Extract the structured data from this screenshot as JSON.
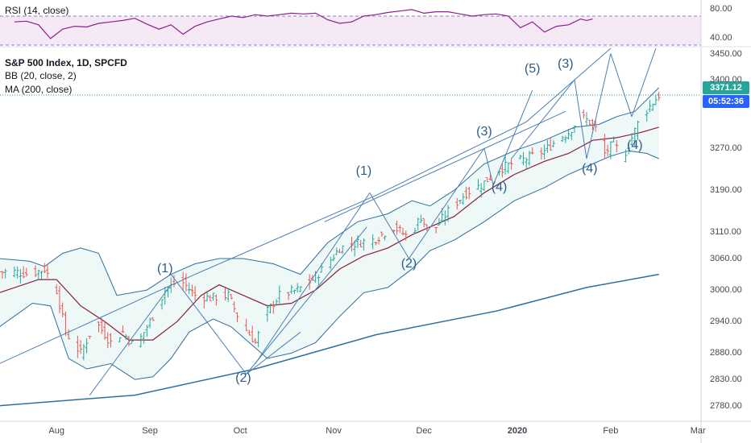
{
  "chart_data": [
    {
      "type": "line",
      "indicator": "RSI (14, close)",
      "legend_text": "RSI (14, close)",
      "y_ticks": [
        "80.00",
        "40.00"
      ],
      "y_tick_values": [
        80,
        40
      ],
      "ylim": [
        30,
        90
      ],
      "band": [
        30,
        70
      ],
      "x_days": [
        0,
        4,
        8,
        12,
        16,
        20,
        24,
        28,
        32,
        36,
        40,
        44,
        48,
        52,
        56,
        60,
        64,
        68,
        72,
        76,
        80,
        84,
        88,
        92,
        96,
        100,
        104,
        108,
        112,
        116,
        120,
        124,
        128,
        132,
        136,
        140,
        144,
        148,
        152,
        156,
        160,
        164,
        168,
        172,
        176,
        180,
        184,
        188,
        190,
        192
      ],
      "values": [
        62,
        63,
        58,
        39,
        52,
        56,
        55,
        60,
        62,
        64,
        67,
        59,
        52,
        58,
        45,
        56,
        62,
        66,
        70,
        68,
        72,
        70,
        72,
        74,
        73,
        74,
        65,
        60,
        62,
        70,
        72,
        75,
        77,
        79,
        74,
        76,
        76,
        73,
        70,
        72,
        73,
        70,
        54,
        62,
        48,
        56,
        58,
        66,
        64,
        66
      ]
    },
    {
      "type": "ohlc",
      "title": "S&P 500 Index, 1D, SPCFD",
      "legend": [
        "S&P 500 Index, 1D, SPCFD",
        "BB (20, close, 2)",
        "MA (200, close)"
      ],
      "ylim": [
        2755,
        3460
      ],
      "y_ticks": [
        "3450.00",
        "3400.00",
        "3270.00",
        "3190.00",
        "3110.00",
        "3060.00",
        "3000.00",
        "2940.00",
        "2880.00",
        "2830.00",
        "2780.00"
      ],
      "y_tick_values": [
        3450,
        3400,
        3270,
        3190,
        3110,
        3060,
        3000,
        2940,
        2880,
        2830,
        2780
      ],
      "x_ticks": [
        "Aug",
        "Sep",
        "Oct",
        "Nov",
        "Dec",
        "2020",
        "Feb",
        "Mar"
      ],
      "x_tick_days": [
        14,
        45,
        75,
        106,
        136,
        167,
        198,
        227
      ],
      "x_tick_bold": [
        "2020"
      ],
      "last_price": "3371.12",
      "countdown": "05:52:36",
      "price_keypoints": [
        [
          0,
          3035
        ],
        [
          5,
          3030
        ],
        [
          10,
          3040
        ],
        [
          14,
          3000
        ],
        [
          17,
          2920
        ],
        [
          22,
          2880
        ],
        [
          27,
          2940
        ],
        [
          32,
          2900
        ],
        [
          36,
          2920
        ],
        [
          40,
          2890
        ],
        [
          46,
          2950
        ],
        [
          50,
          3000
        ],
        [
          55,
          3020
        ],
        [
          60,
          2990
        ],
        [
          65,
          2985
        ],
        [
          71,
          2990
        ],
        [
          75,
          2940
        ],
        [
          80,
          2900
        ],
        [
          84,
          2960
        ],
        [
          88,
          2990
        ],
        [
          94,
          3000
        ],
        [
          99,
          3020
        ],
        [
          104,
          3050
        ],
        [
          108,
          3080
        ],
        [
          114,
          3090
        ],
        [
          119,
          3095
        ],
        [
          126,
          3120
        ],
        [
          131,
          3100
        ],
        [
          135,
          3140
        ],
        [
          137,
          3115
        ],
        [
          140,
          3120
        ],
        [
          144,
          3150
        ],
        [
          150,
          3185
        ],
        [
          155,
          3200
        ],
        [
          161,
          3230
        ],
        [
          165,
          3240
        ],
        [
          170,
          3250
        ],
        [
          176,
          3265
        ],
        [
          180,
          3285
        ],
        [
          184,
          3300
        ],
        [
          188,
          3330
        ],
        [
          191,
          3320
        ],
        [
          194,
          3300
        ],
        [
          196,
          3260
        ],
        [
          199,
          3280
        ],
        [
          202,
          3250
        ],
        [
          205,
          3290
        ],
        [
          208,
          3330
        ],
        [
          211,
          3350
        ],
        [
          214,
          3371
        ]
      ],
      "ma200": [
        [
          -5,
          2780
        ],
        [
          40,
          2800
        ],
        [
          80,
          2850
        ],
        [
          120,
          2915
        ],
        [
          160,
          2960
        ],
        [
          190,
          3005
        ],
        [
          214,
          3030
        ]
      ],
      "bb_upper": [
        [
          -5,
          3060
        ],
        [
          5,
          3055
        ],
        [
          10,
          3045
        ],
        [
          16,
          3070
        ],
        [
          22,
          3080
        ],
        [
          28,
          3070
        ],
        [
          34,
          2990
        ],
        [
          44,
          3000
        ],
        [
          52,
          3030
        ],
        [
          60,
          3050
        ],
        [
          68,
          3060
        ],
        [
          76,
          3060
        ],
        [
          86,
          3050
        ],
        [
          95,
          3030
        ],
        [
          104,
          3090
        ],
        [
          114,
          3130
        ],
        [
          124,
          3145
        ],
        [
          132,
          3170
        ],
        [
          138,
          3160
        ],
        [
          146,
          3190
        ],
        [
          156,
          3240
        ],
        [
          166,
          3265
        ],
        [
          176,
          3285
        ],
        [
          186,
          3310
        ],
        [
          194,
          3315
        ],
        [
          200,
          3330
        ],
        [
          206,
          3340
        ],
        [
          214,
          3385
        ]
      ],
      "bb_middle": [
        [
          -5,
          2995
        ],
        [
          8,
          3020
        ],
        [
          14,
          3020
        ],
        [
          22,
          2970
        ],
        [
          30,
          2940
        ],
        [
          38,
          2905
        ],
        [
          46,
          2905
        ],
        [
          54,
          2940
        ],
        [
          62,
          2990
        ],
        [
          68,
          3010
        ],
        [
          76,
          2990
        ],
        [
          84,
          2970
        ],
        [
          92,
          2975
        ],
        [
          100,
          3000
        ],
        [
          108,
          3040
        ],
        [
          116,
          3065
        ],
        [
          124,
          3080
        ],
        [
          132,
          3105
        ],
        [
          138,
          3120
        ],
        [
          146,
          3140
        ],
        [
          156,
          3185
        ],
        [
          166,
          3220
        ],
        [
          176,
          3245
        ],
        [
          184,
          3260
        ],
        [
          192,
          3285
        ],
        [
          200,
          3290
        ],
        [
          208,
          3300
        ],
        [
          214,
          3310
        ]
      ],
      "bb_lower": [
        [
          -5,
          2930
        ],
        [
          6,
          2975
        ],
        [
          12,
          2970
        ],
        [
          18,
          2870
        ],
        [
          24,
          2850
        ],
        [
          32,
          2860
        ],
        [
          40,
          2830
        ],
        [
          46,
          2835
        ],
        [
          52,
          2870
        ],
        [
          58,
          2920
        ],
        [
          66,
          2945
        ],
        [
          72,
          2930
        ],
        [
          78,
          2900
        ],
        [
          84,
          2870
        ],
        [
          92,
          2880
        ],
        [
          100,
          2900
        ],
        [
          108,
          2950
        ],
        [
          116,
          2995
        ],
        [
          124,
          3005
        ],
        [
          132,
          3040
        ],
        [
          138,
          3075
        ],
        [
          146,
          3095
        ],
        [
          156,
          3130
        ],
        [
          166,
          3170
        ],
        [
          176,
          3195
        ],
        [
          184,
          3220
        ],
        [
          192,
          3240
        ],
        [
          198,
          3255
        ],
        [
          204,
          3265
        ],
        [
          210,
          3260
        ],
        [
          214,
          3250
        ]
      ],
      "lines": [
        [
          [
            -5,
            2860
          ],
          [
            60,
            3030
          ],
          [
            120,
            3180
          ],
          [
            170,
            3320
          ],
          [
            198,
            3460
          ]
        ],
        [
          [
            25,
            2800
          ],
          [
            52,
            3010
          ]
        ],
        [
          [
            77,
            2840
          ],
          [
            117,
            3120
          ]
        ],
        [
          [
            52,
            3030
          ],
          [
            77,
            2840
          ]
        ],
        [
          [
            77,
            2840
          ],
          [
            95,
            2920
          ]
        ],
        [
          [
            80,
            2860
          ],
          [
            118,
            3185
          ]
        ],
        [
          [
            118,
            3185
          ],
          [
            131,
            3060
          ]
        ],
        [
          [
            131,
            3060
          ],
          [
            156,
            3270
          ]
        ],
        [
          [
            156,
            3270
          ],
          [
            159,
            3200
          ]
        ],
        [
          [
            159,
            3200
          ],
          [
            172,
            3380
          ]
        ],
        [
          [
            165,
            3250
          ],
          [
            186,
            3400
          ]
        ],
        [
          [
            186,
            3400
          ],
          [
            190,
            3250
          ]
        ],
        [
          [
            190,
            3250
          ],
          [
            198,
            3450
          ]
        ],
        [
          [
            198,
            3450
          ],
          [
            205,
            3330
          ]
        ],
        [
          [
            205,
            3330
          ],
          [
            213,
            3460
          ]
        ],
        [
          [
            103,
            3130
          ],
          [
            183,
            3340
          ]
        ]
      ],
      "wave_labels": [
        {
          "text": "(1)",
          "day": 50,
          "price": 3040
        },
        {
          "text": "(2)",
          "day": 76,
          "price": 2832
        },
        {
          "text": "(1)",
          "day": 116,
          "price": 3225
        },
        {
          "text": "(2)",
          "day": 131,
          "price": 3050
        },
        {
          "text": "(3)",
          "day": 156,
          "price": 3300
        },
        {
          "text": "(4)",
          "day": 161,
          "price": 3195
        },
        {
          "text": "(5)",
          "day": 172,
          "price": 3420
        },
        {
          "text": "(3)",
          "day": 183,
          "price": 3430
        },
        {
          "text": "(4)",
          "day": 191,
          "price": 3230
        },
        {
          "text": "(4)",
          "day": 206,
          "price": 3275
        }
      ]
    }
  ]
}
